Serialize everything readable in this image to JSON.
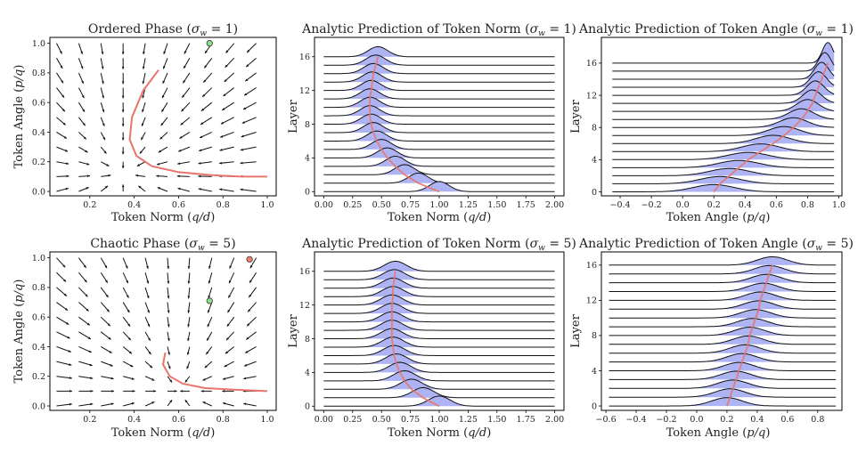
{
  "colors": {
    "fill": "#aeb4f3",
    "curve": "#e8756c",
    "line": "#111111",
    "arrow": "#111111",
    "green": "#8ee08a",
    "red": "#f08070"
  },
  "chart_data": [
    {
      "id": "p1",
      "type": "quiver",
      "title_main": "Ordered Phase (",
      "title_math": "σ",
      "title_sub": "w",
      "title_rest": " = 1)",
      "xlabel_main": "Token Norm (",
      "xlabel_math": "q/d",
      "xlabel_end": ")",
      "ylabel_main": "Token Angle (",
      "ylabel_math": "p/q",
      "ylabel_end": ")",
      "xlim": [
        0.02,
        1.04
      ],
      "ylim": [
        -0.03,
        1.04
      ],
      "xticks": [
        "0.2",
        "0.4",
        "0.6",
        "0.8",
        "1.0"
      ],
      "xtick_values": [
        0.2,
        0.4,
        0.6,
        0.8,
        1.0
      ],
      "yticks": [
        "0.0",
        "0.2",
        "0.4",
        "0.6",
        "0.8",
        "1.0"
      ],
      "ytick_values": [
        0.0,
        0.2,
        0.4,
        0.6,
        0.8,
        1.0
      ],
      "grid_x": [
        0.05,
        0.15,
        0.25,
        0.35,
        0.45,
        0.55,
        0.65,
        0.75,
        0.85,
        0.95
      ],
      "grid_y": [
        0.0,
        0.1,
        0.2,
        0.3,
        0.4,
        0.5,
        0.6,
        0.7,
        0.8,
        0.9,
        1.0
      ],
      "trajectory": [
        [
          0.51,
          0.82
        ],
        [
          0.44,
          0.68
        ],
        [
          0.39,
          0.5
        ],
        [
          0.38,
          0.35
        ],
        [
          0.41,
          0.24
        ],
        [
          0.48,
          0.17
        ],
        [
          0.6,
          0.13
        ],
        [
          0.75,
          0.11
        ],
        [
          0.88,
          0.1
        ],
        [
          1.0,
          0.1
        ]
      ],
      "fixed_point": [
        0.74,
        1.0
      ],
      "fixed_point_color": "green",
      "regime": "ordered"
    },
    {
      "id": "p2",
      "type": "ridgeline",
      "title_main": "Analytic Prediction of Token Norm (",
      "title_math": "σ",
      "title_sub": "w",
      "title_rest": " = 1)",
      "xlabel_main": "Token Norm (",
      "xlabel_math": "q/d",
      "xlabel_end": ")",
      "ylabel_main": "Layer",
      "ylabel_math": "",
      "ylabel_end": "",
      "xlim": [
        -0.08,
        2.08
      ],
      "ylim": [
        -0.5,
        18.3
      ],
      "xticks": [
        "0.00",
        "0.25",
        "0.50",
        "0.75",
        "1.00",
        "1.25",
        "1.50",
        "1.75",
        "2.00"
      ],
      "xtick_values": [
        0,
        0.25,
        0.5,
        0.75,
        1.0,
        1.25,
        1.5,
        1.75,
        2.0
      ],
      "yticks": [
        "0",
        "4",
        "8",
        "12",
        "16"
      ],
      "ytick_values": [
        0,
        4,
        8,
        12,
        16
      ],
      "line_x": [
        0.0,
        2.0
      ],
      "layers": 16,
      "means": [
        1.0,
        0.82,
        0.7,
        0.62,
        0.55,
        0.5,
        0.46,
        0.43,
        0.41,
        0.4,
        0.4,
        0.4,
        0.41,
        0.42,
        0.43,
        0.45,
        0.47
      ],
      "sigma": 0.085,
      "amp": 1.2
    },
    {
      "id": "p3",
      "type": "ridgeline",
      "title_main": "Analytic Prediction of Token Angle (",
      "title_math": "σ",
      "title_sub": "w",
      "title_rest": " = 1)",
      "xlabel_main": "Token Angle (",
      "xlabel_math": "p/q",
      "xlabel_end": ")",
      "ylabel_main": "Layer",
      "ylabel_math": "",
      "ylabel_end": "",
      "xlim": [
        -0.52,
        1.02
      ],
      "ylim": [
        -0.5,
        19.2
      ],
      "xticks": [
        "−0.4",
        "−0.2",
        "0.0",
        "0.2",
        "0.4",
        "0.6",
        "0.8",
        "1.0"
      ],
      "xtick_values": [
        -0.4,
        -0.2,
        0.0,
        0.2,
        0.4,
        0.6,
        0.8,
        1.0
      ],
      "yticks": [
        "0",
        "4",
        "8",
        "12",
        "16"
      ],
      "ytick_values": [
        0,
        4,
        8,
        12,
        16
      ],
      "line_x": [
        -0.45,
        0.97
      ],
      "layers": 16,
      "means": [
        0.2,
        0.24,
        0.3,
        0.36,
        0.42,
        0.5,
        0.58,
        0.65,
        0.71,
        0.76,
        0.8,
        0.83,
        0.85,
        0.87,
        0.89,
        0.91,
        0.93
      ],
      "sigmas": [
        0.13,
        0.13,
        0.13,
        0.13,
        0.13,
        0.12,
        0.11,
        0.1,
        0.09,
        0.08,
        0.07,
        0.06,
        0.055,
        0.05,
        0.045,
        0.04,
        0.035
      ],
      "amp_base": 0.9
    },
    {
      "id": "p4",
      "type": "quiver",
      "title_main": "Chaotic Phase (",
      "title_math": "σ",
      "title_sub": "w",
      "title_rest": " = 5)",
      "xlabel_main": "Token Norm (",
      "xlabel_math": "q/d",
      "xlabel_end": ")",
      "ylabel_main": "Token Angle (",
      "ylabel_math": "p/q",
      "ylabel_end": ")",
      "xlim": [
        0.02,
        1.04
      ],
      "ylim": [
        -0.03,
        1.04
      ],
      "xticks": [
        "0.2",
        "0.4",
        "0.6",
        "0.8",
        "1.0"
      ],
      "xtick_values": [
        0.2,
        0.4,
        0.6,
        0.8,
        1.0
      ],
      "yticks": [
        "0.0",
        "0.2",
        "0.4",
        "0.6",
        "0.8",
        "1.0"
      ],
      "ytick_values": [
        0.0,
        0.2,
        0.4,
        0.6,
        0.8,
        1.0
      ],
      "grid_x": [
        0.05,
        0.15,
        0.25,
        0.35,
        0.45,
        0.55,
        0.65,
        0.75,
        0.85,
        0.95
      ],
      "grid_y": [
        0.0,
        0.1,
        0.2,
        0.3,
        0.4,
        0.5,
        0.6,
        0.7,
        0.8,
        0.9,
        1.0
      ],
      "trajectory": [
        [
          0.54,
          0.36
        ],
        [
          0.53,
          0.28
        ],
        [
          0.56,
          0.2
        ],
        [
          0.62,
          0.15
        ],
        [
          0.72,
          0.12
        ],
        [
          0.85,
          0.11
        ],
        [
          1.0,
          0.1
        ]
      ],
      "fixed_point": [
        0.74,
        0.71
      ],
      "fixed_point_color": "green",
      "fixed_point2": [
        0.92,
        0.99
      ],
      "fixed_point2_color": "red",
      "regime": "chaotic"
    },
    {
      "id": "p5",
      "type": "ridgeline",
      "title_main": "Analytic Prediction of Token Norm (",
      "title_math": "σ",
      "title_sub": "w",
      "title_rest": " = 5)",
      "xlabel_main": "Token Norm (",
      "xlabel_math": "q/d",
      "xlabel_end": ")",
      "ylabel_main": "Layer",
      "ylabel_math": "",
      "ylabel_end": "",
      "xlim": [
        -0.08,
        2.08
      ],
      "ylim": [
        -0.5,
        18.3
      ],
      "xticks": [
        "0.00",
        "0.25",
        "0.50",
        "0.75",
        "1.00",
        "1.25",
        "1.50",
        "1.75",
        "2.00"
      ],
      "xtick_values": [
        0,
        0.25,
        0.5,
        0.75,
        1.0,
        1.25,
        1.5,
        1.75,
        2.0
      ],
      "yticks": [
        "0",
        "4",
        "8",
        "12",
        "16"
      ],
      "ytick_values": [
        0,
        4,
        8,
        12,
        16
      ],
      "line_x": [
        0.0,
        2.0
      ],
      "layers": 16,
      "means": [
        1.0,
        0.86,
        0.76,
        0.7,
        0.66,
        0.63,
        0.61,
        0.6,
        0.59,
        0.59,
        0.59,
        0.59,
        0.59,
        0.6,
        0.6,
        0.61,
        0.62
      ],
      "sigma": 0.095,
      "amp": 1.2
    },
    {
      "id": "p6",
      "type": "ridgeline",
      "title_main": "Analytic Prediction of Token Angle (",
      "title_math": "σ",
      "title_sub": "w",
      "title_rest": " = 5)",
      "xlabel_main": "Token Angle (",
      "xlabel_math": "p/q",
      "xlabel_end": ")",
      "ylabel_main": "Layer",
      "ylabel_math": "",
      "ylabel_end": "",
      "xlim": [
        -0.63,
        0.96
      ],
      "ylim": [
        -0.5,
        17.5
      ],
      "xticks": [
        "−0.6",
        "−0.4",
        "−0.2",
        "0.0",
        "0.2",
        "0.4",
        "0.6",
        "0.8"
      ],
      "xtick_values": [
        -0.6,
        -0.4,
        -0.2,
        0.0,
        0.2,
        0.4,
        0.6,
        0.8
      ],
      "yticks": [
        "0",
        "4",
        "8",
        "12",
        "16"
      ],
      "ytick_values": [
        0,
        4,
        8,
        12,
        16
      ],
      "line_x": [
        -0.58,
        0.92
      ],
      "layers": 16,
      "means": [
        0.2,
        0.22,
        0.24,
        0.26,
        0.28,
        0.3,
        0.32,
        0.34,
        0.35,
        0.37,
        0.39,
        0.41,
        0.42,
        0.44,
        0.46,
        0.48,
        0.5
      ],
      "sigma": 0.1,
      "amp": 0.95
    }
  ]
}
